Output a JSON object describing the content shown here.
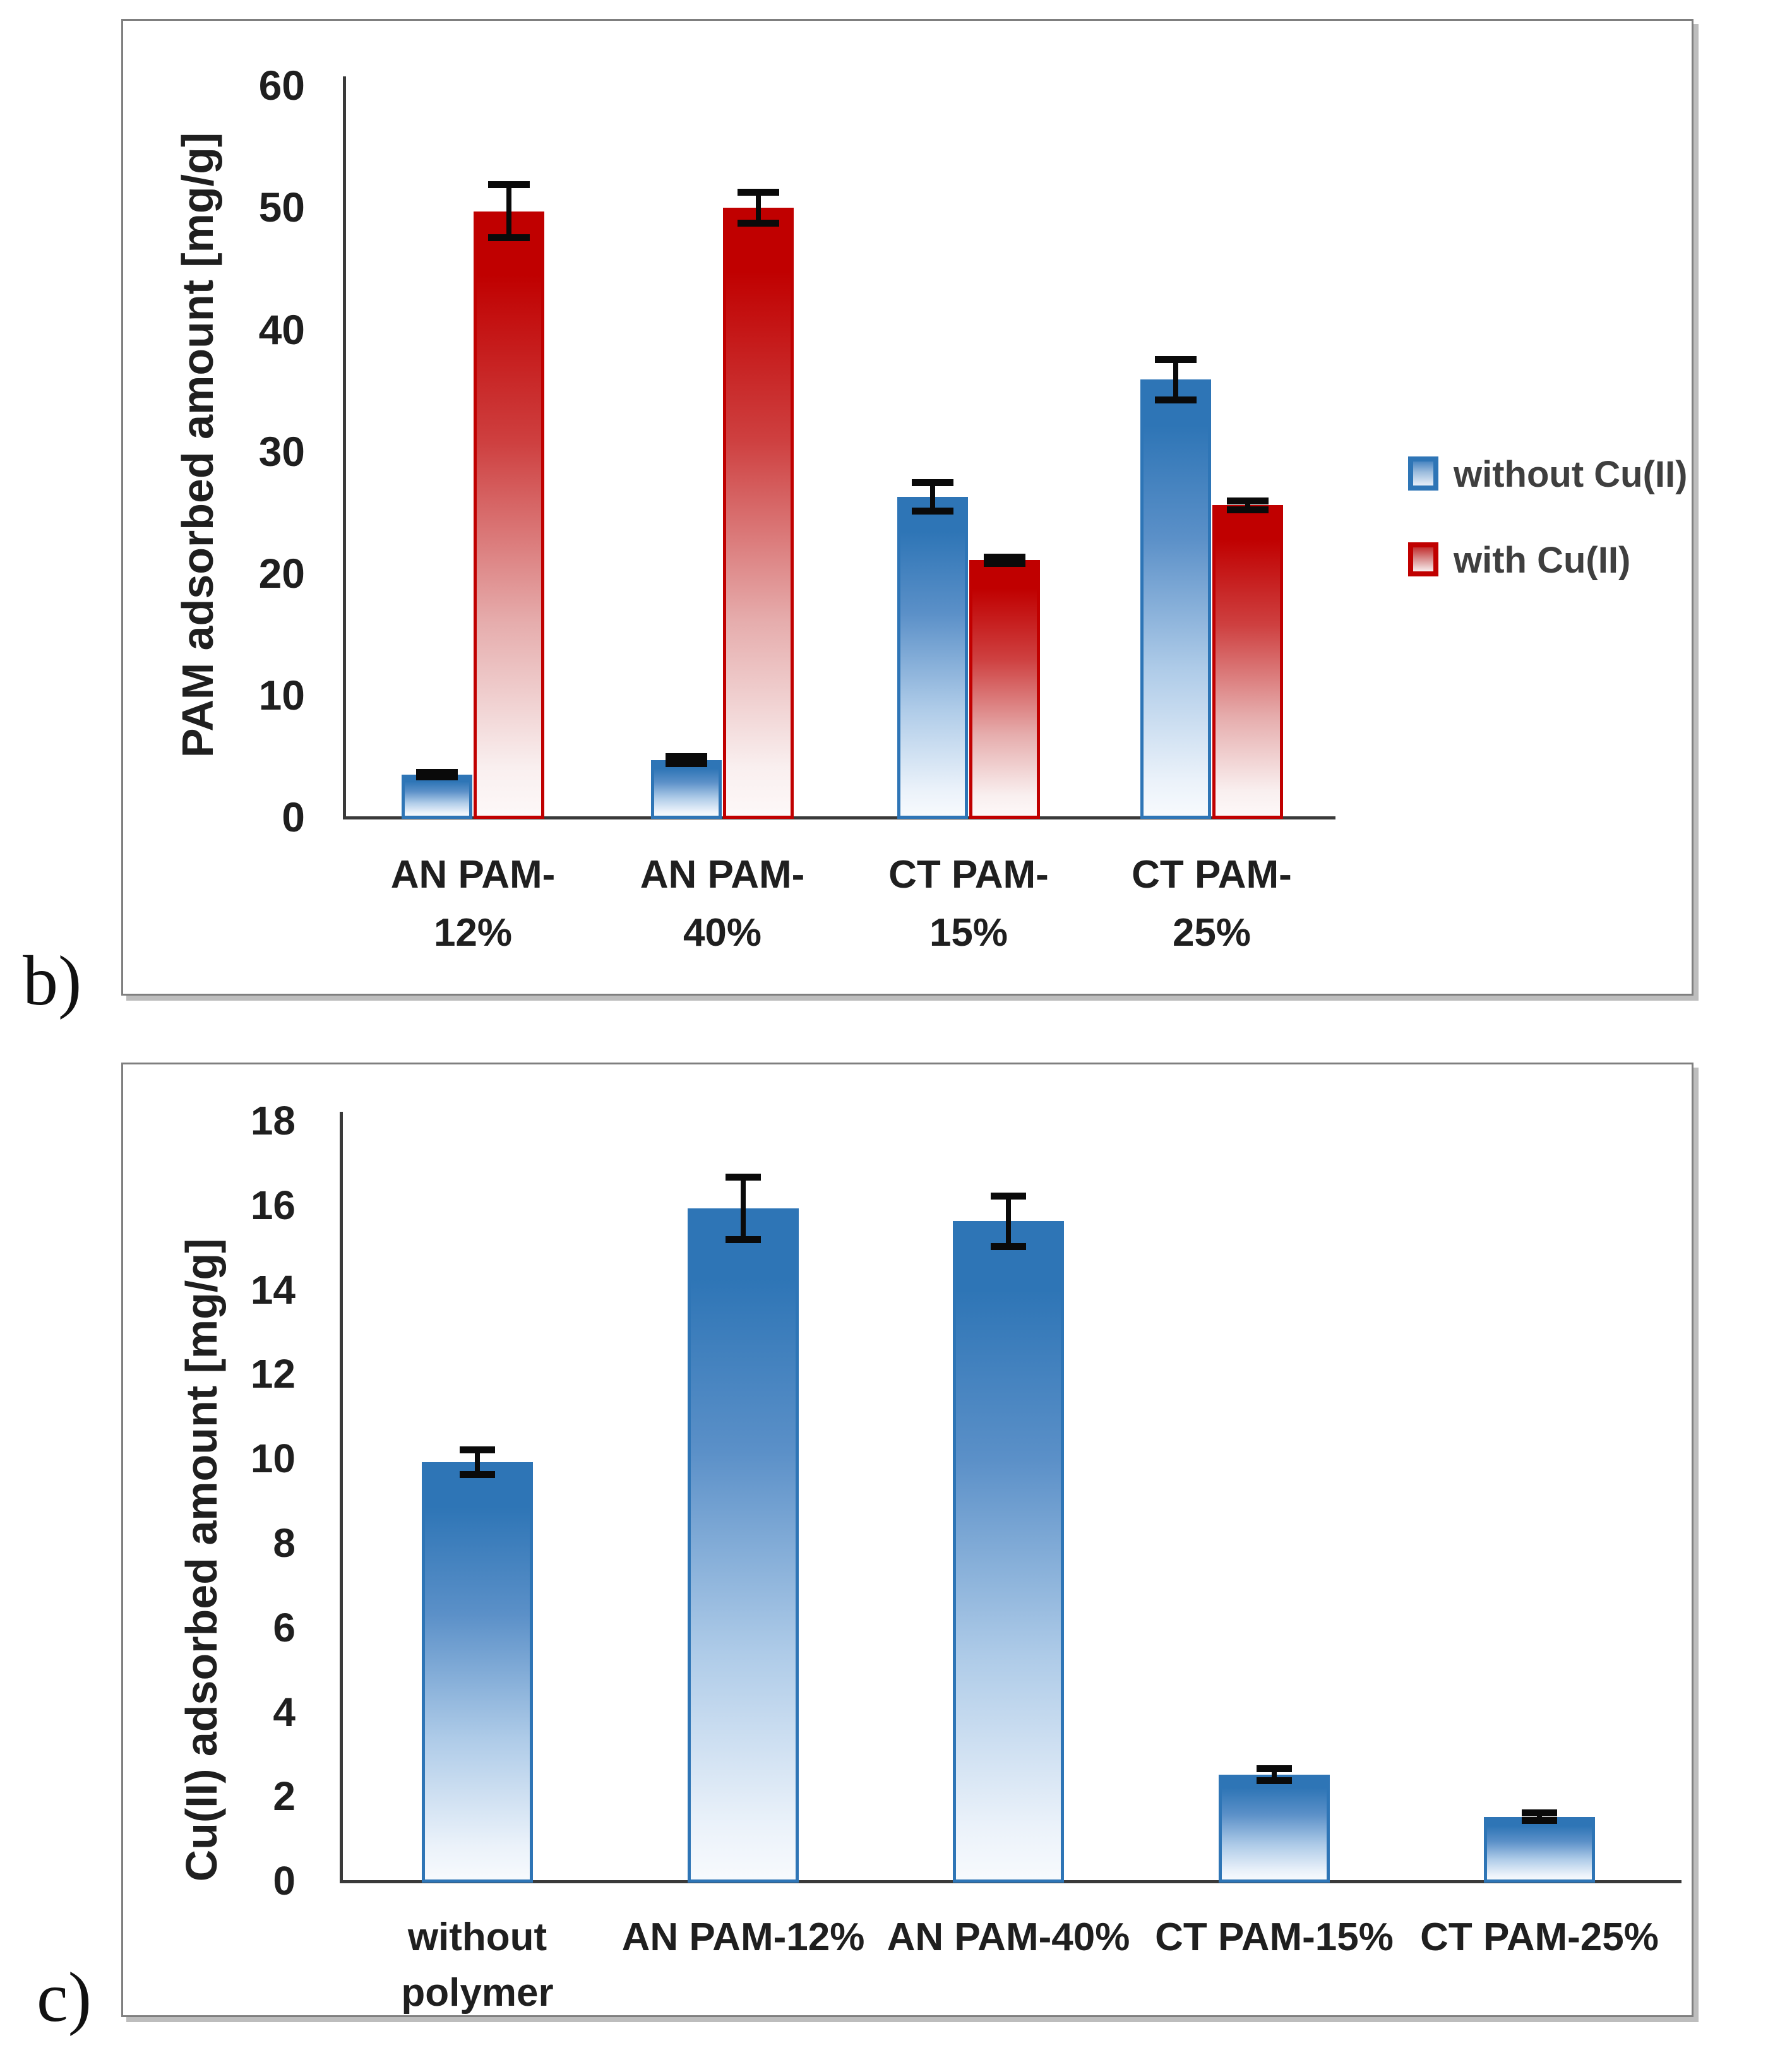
{
  "panels": [
    {
      "id": "b",
      "label": "b)"
    },
    {
      "id": "c",
      "label": "c)"
    }
  ],
  "colors": {
    "blue": "#2E75B6",
    "red": "#C00000",
    "axis": "#3a3a3a",
    "text": "#1f1f1f",
    "legend_text": "#3f3f3f",
    "panel_border": "#7f7f7f"
  },
  "chart_data": [
    {
      "panel": "b",
      "type": "bar",
      "title": "",
      "ylabel": "PAM adsorbed amount [mg/g]",
      "xlabel": "",
      "ylim": [
        0,
        60
      ],
      "ytick_step": 10,
      "yticks": [
        60,
        50,
        40,
        30,
        20,
        10,
        0
      ],
      "grid": false,
      "categories": [
        [
          "AN PAM-",
          "12%"
        ],
        [
          "AN PAM-",
          "40%"
        ],
        [
          "CT PAM-",
          "15%"
        ],
        [
          "CT PAM-",
          "25%"
        ]
      ],
      "series": [
        {
          "name": "without Cu(II)",
          "color_key": "blue",
          "values": [
            3.4,
            4.6,
            26.2,
            35.8
          ],
          "errors": [
            0.2,
            0.3,
            1.2,
            1.7
          ]
        },
        {
          "name": "with Cu(II)",
          "color_key": "red",
          "values": [
            49.6,
            49.9,
            21.0,
            25.5
          ],
          "errors": [
            2.2,
            1.3,
            0.3,
            0.4
          ]
        }
      ],
      "legend": {
        "position": "right",
        "items": [
          {
            "label": "without Cu(II)",
            "color_key": "blue"
          },
          {
            "label": "with Cu(II)",
            "color_key": "red"
          }
        ]
      }
    },
    {
      "panel": "c",
      "type": "bar",
      "title": "",
      "ylabel": "Cu(II) adsorbed amount [mg/g]",
      "xlabel": "",
      "ylim": [
        0,
        18
      ],
      "ytick_step": 2,
      "yticks": [
        18,
        16,
        14,
        12,
        10,
        8,
        6,
        4,
        2,
        0
      ],
      "grid": false,
      "categories": [
        [
          "without",
          "polymer"
        ],
        [
          "AN PAM-12%"
        ],
        [
          "AN PAM-40%"
        ],
        [
          "CT PAM-15%"
        ],
        [
          "CT PAM-25%"
        ]
      ],
      "series": [
        {
          "name": "Cu(II) adsorbed",
          "color_key": "blue",
          "values": [
            9.9,
            15.9,
            15.6,
            2.5,
            1.5
          ],
          "errors": [
            0.3,
            0.75,
            0.6,
            0.15,
            0.1
          ]
        }
      ],
      "legend": null
    }
  ]
}
